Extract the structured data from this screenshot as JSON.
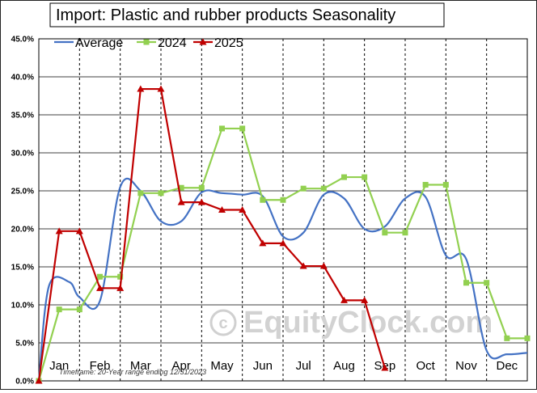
{
  "chart_data": {
    "type": "line",
    "title": "Import: Plastic and rubber products Seasonality",
    "categories": [
      "Jan",
      "Feb",
      "Mar",
      "Apr",
      "May",
      "Jun",
      "Jul",
      "Aug",
      "Sep",
      "Oct",
      "Nov",
      "Dec"
    ],
    "y_ticks": [
      "0.0%",
      "5.0%",
      "10.0%",
      "15.0%",
      "20.0%",
      "25.0%",
      "30.0%",
      "35.0%",
      "40.0%",
      "45.0%"
    ],
    "ylim": [
      0,
      45
    ],
    "y_unit": "%",
    "grid": true,
    "legend_position": "top-left",
    "footnote": "Timeframe: 20-Year range ending 12/31/2023",
    "watermark": "© EquityClock.com",
    "series": [
      {
        "name": "Average",
        "color": "#4472c4",
        "smooth": true,
        "x": [
          0,
          0.25,
          0.75,
          1.0,
          1.5,
          2.0,
          2.5,
          3.0,
          3.5,
          4.0,
          4.5,
          5.0,
          5.5,
          6.0,
          6.5,
          7.0,
          7.5,
          8.0,
          8.5,
          9.0,
          9.5,
          10.0,
          10.5,
          11.0,
          11.5,
          12.0
        ],
        "values": [
          0.0,
          12.5,
          13.0,
          11.0,
          10.5,
          25.5,
          25.0,
          21.0,
          21.0,
          24.8,
          24.7,
          24.5,
          24.3,
          19.0,
          19.5,
          24.5,
          24.0,
          20.0,
          20.3,
          24.0,
          24.2,
          16.5,
          16.0,
          4.0,
          3.5,
          3.7
        ]
      },
      {
        "name": "2024",
        "color": "#92d050",
        "x": [
          0,
          0.5,
          1.0,
          1.5,
          2.0,
          2.5,
          3.0,
          3.5,
          4.0,
          4.5,
          5.0,
          5.5,
          6.0,
          6.5,
          7.0,
          7.5,
          8.0,
          8.5,
          9.0,
          9.5,
          10.0,
          10.5,
          11.0,
          11.5,
          12.0
        ],
        "values": [
          0.0,
          9.4,
          9.4,
          13.7,
          13.7,
          24.7,
          24.7,
          25.4,
          25.4,
          33.2,
          33.2,
          23.8,
          23.8,
          25.3,
          25.3,
          26.8,
          26.8,
          19.5,
          19.5,
          25.8,
          25.8,
          12.9,
          12.9,
          5.6,
          5.6
        ]
      },
      {
        "name": "2025",
        "color": "#c00000",
        "x": [
          0,
          0.5,
          1.0,
          1.5,
          2.0,
          2.5,
          3.0,
          3.5,
          4.0,
          4.5,
          5.0,
          5.5,
          6.0,
          6.5,
          7.0,
          7.5,
          8.0,
          8.5
        ],
        "values": [
          0.0,
          19.7,
          19.7,
          12.2,
          12.2,
          38.4,
          38.4,
          23.5,
          23.5,
          22.5,
          22.5,
          18.1,
          18.1,
          15.1,
          15.1,
          10.6,
          10.6,
          1.7
        ]
      }
    ]
  }
}
